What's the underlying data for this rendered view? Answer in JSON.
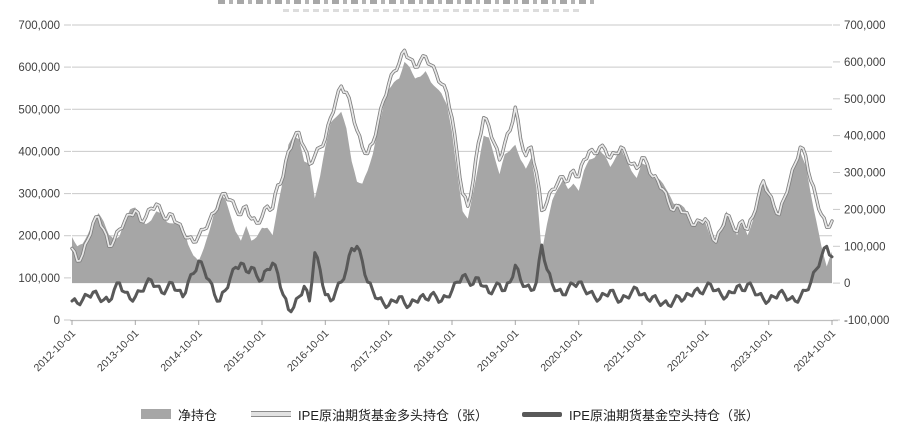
{
  "axes": {
    "left_ticks": [
      "700,000",
      "600,000",
      "500,000",
      "400,000",
      "300,000",
      "200,000",
      "100,000",
      "0"
    ],
    "right_ticks": [
      "700,000",
      "600,000",
      "500,000",
      "400,000",
      "300,000",
      "200,000",
      "100,000",
      "0",
      "-100,000"
    ],
    "x_ticks": [
      "2012-10-01",
      "2013-10-01",
      "2014-10-01",
      "2015-10-01",
      "2016-10-01",
      "2017-10-01",
      "2018-10-01",
      "2019-10-01",
      "2020-10-01",
      "2021-10-01",
      "2022-10-01",
      "2023-10-01",
      "2024-10-01"
    ],
    "left_range": [
      0,
      700000
    ],
    "right_range": [
      -100000,
      700000
    ],
    "grid": "horizontal"
  },
  "legend": {
    "items": [
      {
        "label": "净持仓",
        "swatch": "area",
        "color": "#a6a6a6"
      },
      {
        "label": "IPE原油期货基金多头持仓（张）",
        "swatch": "line",
        "color": "#d9d9d9"
      },
      {
        "label": "IPE原油期货基金空头持仓（张）",
        "swatch": "thick-line",
        "color": "#595959"
      }
    ]
  },
  "chart_data": {
    "type": "area",
    "note": "monthly estimates read from plot; first point 2012-10, last 2024-10",
    "x_start": "2012-10",
    "x_end": "2024-10",
    "x_step_months": 1,
    "values_unit": "thousand contracts (张×1000)",
    "render_jitter_thousands": {
      "long": 7,
      "short": 8
    },
    "series": [
      {
        "name": "净持仓",
        "type": "area",
        "axis": "right",
        "derived": "多头持仓 - 空头持仓",
        "color": "#a6a6a6"
      },
      {
        "name": "IPE原油期货基金多头持仓（张）",
        "type": "line",
        "axis": "left",
        "color": "#e8e8e8",
        "values": [
          170,
          140,
          155,
          190,
          230,
          245,
          215,
          175,
          190,
          215,
          235,
          250,
          260,
          235,
          245,
          265,
          275,
          255,
          240,
          250,
          230,
          210,
          195,
          185,
          200,
          215,
          235,
          255,
          285,
          300,
          285,
          265,
          250,
          270,
          240,
          230,
          245,
          270,
          265,
          320,
          340,
          400,
          430,
          445,
          410,
          370,
          390,
          410,
          430,
          480,
          520,
          555,
          540,
          500,
          450,
          410,
          395,
          420,
          470,
          520,
          560,
          590,
          610,
          640,
          620,
          600,
          615,
          625,
          605,
          585,
          560,
          540,
          480,
          390,
          300,
          270,
          330,
          420,
          480,
          460,
          420,
          380,
          420,
          450,
          505,
          430,
          390,
          410,
          350,
          260,
          280,
          310,
          325,
          340,
          330,
          355,
          340,
          380,
          400,
          395,
          410,
          405,
          385,
          395,
          410,
          390,
          370,
          360,
          385,
          370,
          340,
          330,
          310,
          280,
          260,
          270,
          255,
          240,
          225,
          235,
          240,
          210,
          185,
          215,
          250,
          230,
          210,
          235,
          215,
          245,
          290,
          330,
          300,
          270,
          250,
          290,
          330,
          370,
          410,
          390,
          330,
          290,
          250,
          220,
          235
        ]
      },
      {
        "name": "IPE原油期货基金空头持仓（张）",
        "type": "line",
        "axis": "left",
        "color": "#595959",
        "values": [
          45,
          40,
          48,
          58,
          66,
          55,
          48,
          44,
          72,
          88,
          66,
          50,
          55,
          68,
          85,
          95,
          80,
          65,
          75,
          88,
          70,
          55,
          90,
          110,
          140,
          120,
          95,
          60,
          45,
          70,
          100,
          125,
          135,
          115,
          125,
          105,
          95,
          120,
          135,
          110,
          60,
          25,
          30,
          55,
          80,
          45,
          160,
          120,
          60,
          45,
          70,
          90,
          120,
          170,
          175,
          140,
          90,
          70,
          50,
          40,
          35,
          45,
          55,
          40,
          35,
          45,
          55,
          50,
          60,
          55,
          45,
          55,
          70,
          90,
          105,
          95,
          85,
          100,
          80,
          65,
          75,
          85,
          70,
          90,
          130,
          95,
          80,
          70,
          90,
          178,
          120,
          85,
          70,
          60,
          75,
          85,
          90,
          75,
          65,
          55,
          50,
          60,
          70,
          55,
          45,
          55,
          65,
          75,
          60,
          50,
          55,
          45,
          40,
          35,
          45,
          55,
          50,
          60,
          70,
          65,
          75,
          85,
          70,
          60,
          55,
          65,
          80,
          70,
          85,
          75,
          60,
          50,
          45,
          55,
          65,
          60,
          50,
          45,
          55,
          70,
          90,
          120,
          150,
          175,
          150
        ]
      }
    ]
  },
  "colors": {
    "area_fill": "#a6a6a6",
    "long_line_core": "#e8e8e8",
    "long_line_casing": "#7f7f7f",
    "short_line": "#595959",
    "gridline": "#c9c9c9",
    "axis_line": "#bfbfbf",
    "tick_label": "#404040"
  }
}
